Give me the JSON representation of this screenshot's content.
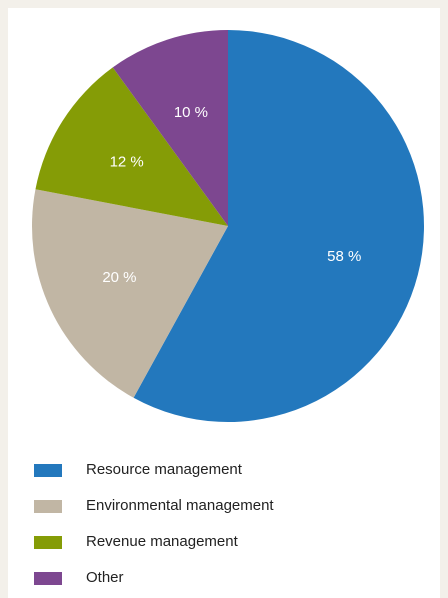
{
  "chart_data": {
    "type": "pie",
    "categories": [
      "Resource management",
      "Environmental management",
      "Revenue management",
      "Other"
    ],
    "values": [
      58,
      20,
      12,
      10
    ],
    "value_labels": [
      "58 %",
      "20 %",
      "12 %",
      "10 %"
    ],
    "colors": [
      "#2378bd",
      "#c1b6a4",
      "#859c06",
      "#7d4790"
    ],
    "legend_position": "bottom-left"
  }
}
